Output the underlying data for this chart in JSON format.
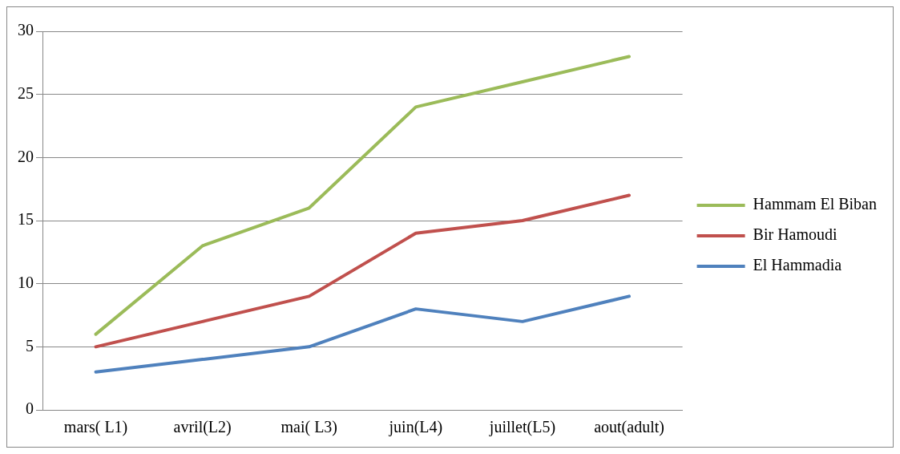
{
  "chart_data": {
    "type": "line",
    "categories": [
      "mars( L1)",
      "avril(L2)",
      "mai( L3)",
      "juin(L4)",
      "juillet(L5)",
      "aout(adult)"
    ],
    "series": [
      {
        "name": "Hammam El Biban",
        "color": "#9bbb59",
        "values": [
          6,
          13,
          16,
          24,
          26,
          28
        ]
      },
      {
        "name": "Bir Hamoudi",
        "color": "#c0504d",
        "values": [
          5,
          7,
          9,
          14,
          15,
          17
        ]
      },
      {
        "name": "El Hammadia",
        "color": "#4f81bd",
        "values": [
          3,
          4,
          5,
          8,
          7,
          9
        ]
      }
    ],
    "ylim": [
      0,
      30
    ],
    "yticks": [
      0,
      5,
      10,
      15,
      20,
      25,
      30
    ],
    "grid": "y",
    "legend": "right",
    "marker": "none",
    "line_style": "solid"
  }
}
